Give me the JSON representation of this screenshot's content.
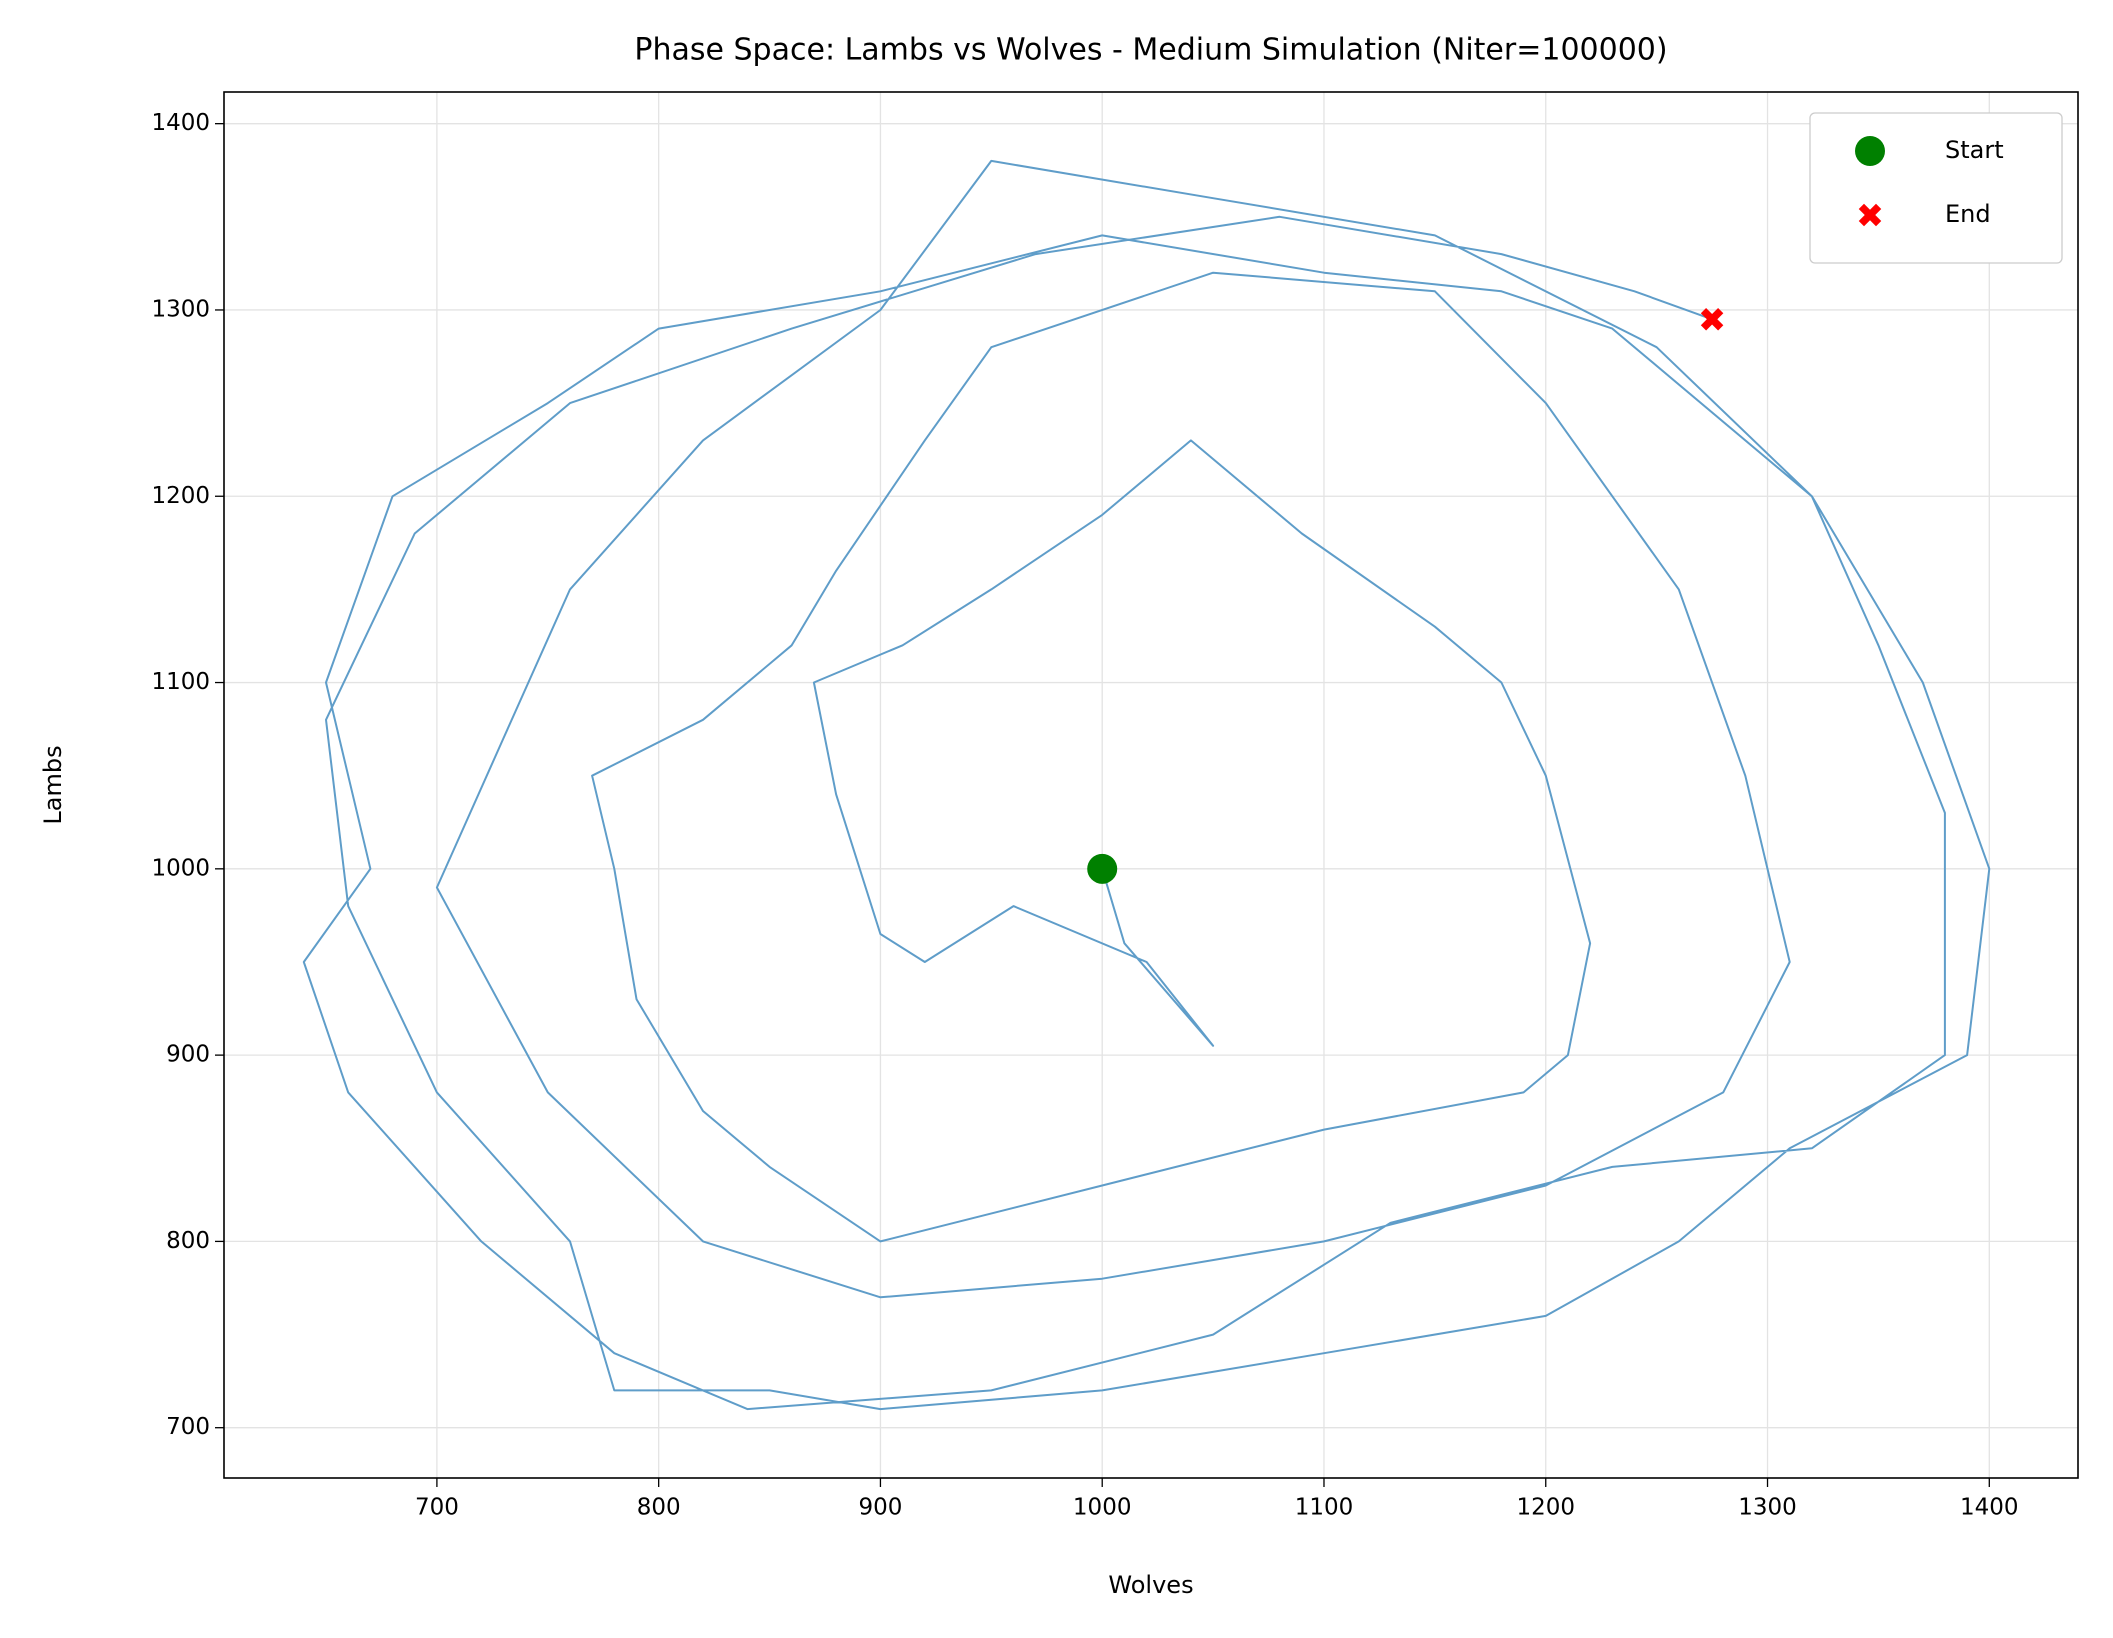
{
  "chart_data": {
    "type": "line",
    "title": "Phase Space: Lambs vs Wolves - Medium Simulation (Niter=100000)",
    "x_label": "Wolves",
    "y_label": "Lambs",
    "xlim": [
      604,
      1440
    ],
    "ylim": [
      673,
      1417
    ],
    "xticks": [
      700,
      800,
      900,
      1000,
      1100,
      1200,
      1300,
      1400
    ],
    "yticks": [
      700,
      800,
      900,
      1000,
      1100,
      1200,
      1300,
      1400
    ],
    "grid": true,
    "legend": "upper right",
    "series": [
      {
        "color": "#5f9dc9",
        "x": [
          1000,
          1010,
          1050,
          1020,
          960,
          920,
          900,
          880,
          870,
          910,
          950,
          1000,
          1040,
          1090,
          1150,
          1180,
          1200,
          1220,
          1210,
          1190,
          1100,
          1000,
          900,
          850,
          820,
          790,
          780,
          770,
          820,
          860,
          880,
          920,
          950,
          1050,
          1150,
          1200,
          1260,
          1290,
          1310,
          1280,
          1200,
          1100,
          1000,
          900,
          820,
          750,
          700,
          730,
          760,
          820,
          900,
          950,
          1050,
          1150,
          1250,
          1320,
          1350,
          1380,
          1380,
          1320,
          1230,
          1130,
          1050,
          950,
          840,
          780,
          720,
          660,
          640,
          670,
          650,
          680,
          750,
          800,
          900,
          1000,
          1100,
          1180,
          1230,
          1320,
          1370,
          1400,
          1390,
          1310,
          1260,
          1200,
          1100,
          1000,
          900,
          850,
          780,
          760,
          700,
          660,
          650,
          690,
          760,
          860,
          970,
          1080,
          1180,
          1240,
          1275
        ],
        "y": [
          1000,
          960,
          905,
          950,
          980,
          950,
          965,
          1040,
          1100,
          1120,
          1150,
          1190,
          1230,
          1180,
          1130,
          1100,
          1050,
          960,
          900,
          880,
          860,
          830,
          800,
          840,
          870,
          930,
          1000,
          1050,
          1080,
          1120,
          1160,
          1230,
          1280,
          1320,
          1310,
          1250,
          1150,
          1050,
          950,
          880,
          830,
          800,
          780,
          770,
          800,
          880,
          990,
          1070,
          1150,
          1230,
          1300,
          1380,
          1360,
          1340,
          1280,
          1200,
          1120,
          1030,
          900,
          850,
          840,
          810,
          750,
          720,
          710,
          740,
          800,
          880,
          950,
          1000,
          1100,
          1200,
          1250,
          1290,
          1310,
          1340,
          1320,
          1310,
          1290,
          1200,
          1100,
          1000,
          900,
          850,
          800,
          760,
          740,
          720,
          710,
          720,
          720,
          800,
          880,
          980,
          1080,
          1180,
          1250,
          1290,
          1330,
          1350,
          1330,
          1310,
          1295
        ]
      },
      {
        "name": "Start",
        "color": "#008000",
        "marker": "circle",
        "x": [
          1000
        ],
        "y": [
          1000
        ]
      },
      {
        "name": "End",
        "color": "#ff0000",
        "marker": "x",
        "x": [
          1275
        ],
        "y": [
          1295
        ]
      }
    ]
  }
}
